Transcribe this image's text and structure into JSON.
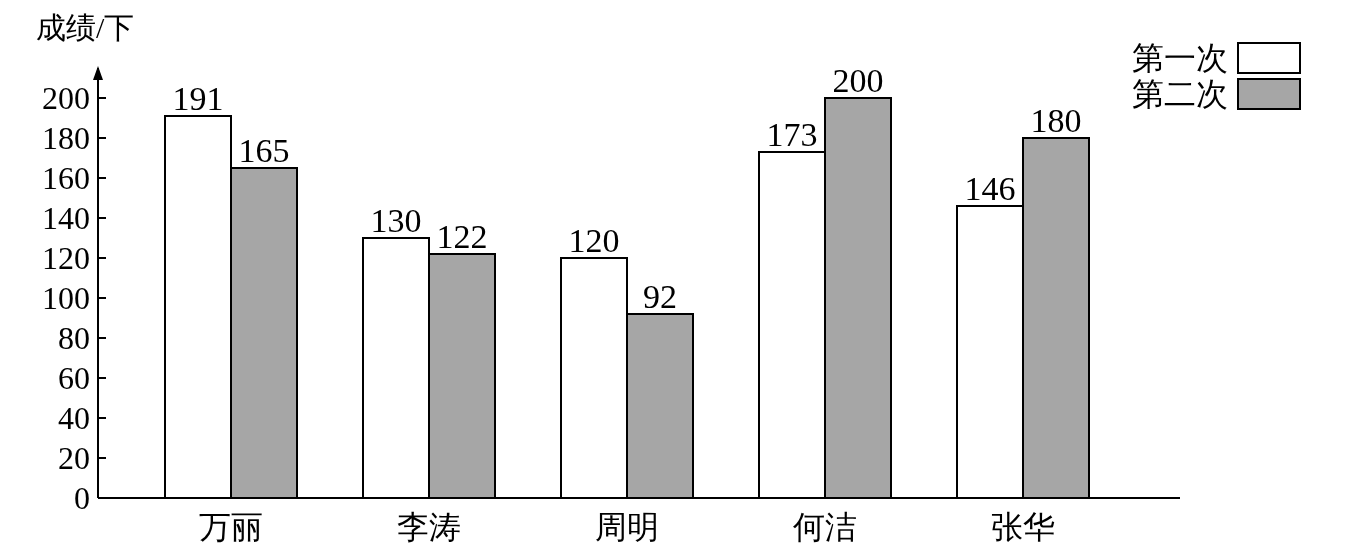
{
  "chart_data": {
    "type": "bar",
    "ylabel": "成绩/下",
    "categories": [
      "万丽",
      "李涛",
      "周明",
      "何洁",
      "张华"
    ],
    "series": [
      {
        "name": "第一次",
        "color": "#ffffff",
        "values": [
          191,
          130,
          120,
          173,
          146
        ]
      },
      {
        "name": "第二次",
        "color": "#a6a6a6",
        "values": [
          165,
          122,
          92,
          200,
          180
        ]
      }
    ],
    "ylim": [
      0,
      215
    ],
    "yticks": [
      0,
      20,
      40,
      60,
      80,
      100,
      120,
      140,
      160,
      180,
      200
    ],
    "data_labels": true,
    "legend": "top right",
    "grid": false
  }
}
